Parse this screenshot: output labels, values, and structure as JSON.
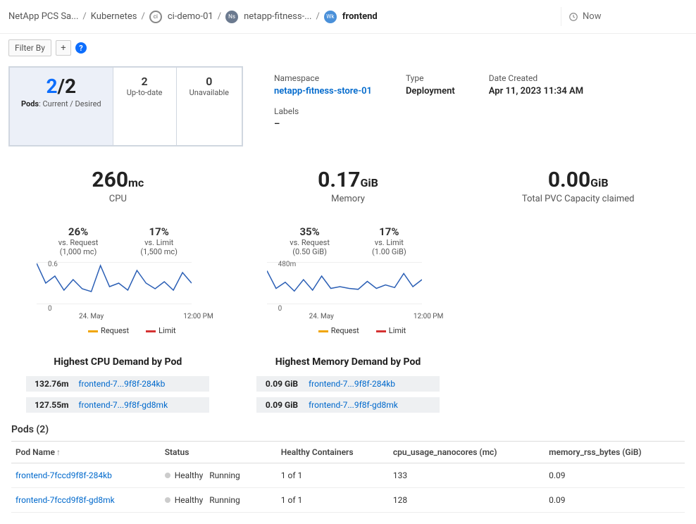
{
  "breadcrumbs": {
    "items": [
      "NetApp PCS Sa...",
      "Kubernetes",
      "ci-demo-01",
      "netapp-fitness-...",
      "frontend"
    ]
  },
  "time_picker": {
    "label": "Now"
  },
  "filter": {
    "label": "Filter By"
  },
  "summary": {
    "pods_current": "2",
    "pods_desired": "2",
    "pods_label_prefix": "Pods",
    "pods_label_rest": ": Current / Desired",
    "uptodate_n": "2",
    "uptodate_t": "Up-to-date",
    "unavail_n": "0",
    "unavail_t": "Unavailable"
  },
  "meta": {
    "namespace_k": "Namespace",
    "namespace_v": "netapp-fitness-store-01",
    "type_k": "Type",
    "type_v": "Deployment",
    "date_k": "Date Created",
    "date_v": "Apr 11, 2023 11:34 AM",
    "labels_k": "Labels",
    "labels_v": "–"
  },
  "cpu": {
    "value": "260",
    "unit": "mc",
    "name": "CPU",
    "req_pct": "26%",
    "req_s1": "vs. Request",
    "req_s2": "(1,000 mc)",
    "lim_pct": "17%",
    "lim_s1": "vs. Limit",
    "lim_s2": "(1,500 mc)",
    "chart": {
      "y_top": "0.6",
      "y_bot": "0",
      "x1": "24. May",
      "x2": "12:00 PM",
      "line_color": "#2b5fb5",
      "points": [
        0.58,
        0.3,
        0.4,
        0.2,
        0.35,
        0.22,
        0.18,
        0.55,
        0.25,
        0.3,
        0.2,
        0.48,
        0.3,
        0.22,
        0.32,
        0.2,
        0.45,
        0.3
      ],
      "ymax": 0.6
    },
    "legend": {
      "req": "Request",
      "req_color": "#f0a500",
      "lim": "Limit",
      "lim_color": "#d53232"
    },
    "demand_title": "Highest CPU Demand by Pod",
    "demand": [
      {
        "val": "132.76m",
        "name": "frontend-7...9f8f-284kb"
      },
      {
        "val": "127.55m",
        "name": "frontend-7...9f8f-gd8mk"
      }
    ]
  },
  "memory": {
    "value": "0.17",
    "unit": "GiB",
    "name": "Memory",
    "req_pct": "35%",
    "req_s1": "vs. Request",
    "req_s2": "(0.50 GiB)",
    "lim_pct": "17%",
    "lim_s1": "vs. Limit",
    "lim_s2": "(1.00 GiB)",
    "chart": {
      "y_top": "480m",
      "y_bot": "0",
      "x1": "24. May",
      "x2": "12:00 PM",
      "line_color": "#2b5fb5",
      "points": [
        380,
        180,
        250,
        150,
        280,
        160,
        320,
        180,
        200,
        180,
        170,
        260,
        180,
        220,
        190,
        350,
        200,
        280
      ],
      "ymax": 480
    },
    "legend": {
      "req": "Request",
      "req_color": "#f0a500",
      "lim": "Limit",
      "lim_color": "#d53232"
    },
    "demand_title": "Highest Memory Demand by Pod",
    "demand": [
      {
        "val": "0.09 GiB",
        "name": "frontend-7...9f8f-284kb"
      },
      {
        "val": "0.09 GiB",
        "name": "frontend-7...9f8f-gd8mk"
      }
    ]
  },
  "pvc": {
    "value": "0.00",
    "unit": "GiB",
    "name": "Total PVC Capacity claimed"
  },
  "pods_table": {
    "title": "Pods (2)",
    "columns": [
      "Pod Name",
      "Status",
      "Healthy Containers",
      "cpu_usage_nanocores (mc)",
      "memory_rss_bytes (GiB)"
    ],
    "rows": [
      {
        "name": "frontend-7fccd9f8f-284kb",
        "health": "Healthy",
        "state": "Running",
        "containers": "1 of 1",
        "cpu": "133",
        "mem": "0.09"
      },
      {
        "name": "frontend-7fccd9f8f-gd8mk",
        "health": "Healthy",
        "state": "Running",
        "containers": "1 of 1",
        "cpu": "128",
        "mem": "0.09"
      }
    ]
  }
}
